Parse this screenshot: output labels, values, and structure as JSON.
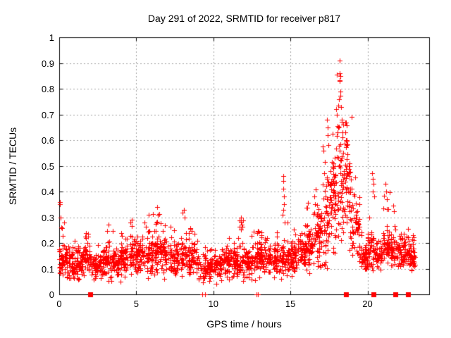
{
  "title": "Day 291 of 2022, SRMTID for receiver p817",
  "chart_data": {
    "type": "scatter",
    "title": "Day 291 of 2022, SRMTID for receiver p817",
    "xlabel": "GPS time / hours",
    "ylabel": "SRMTID / TECUs",
    "xlim": [
      0,
      24
    ],
    "ylim": [
      0,
      1
    ],
    "xticks": [
      0,
      5,
      10,
      15,
      20
    ],
    "xtick_labels": [
      "0",
      "5",
      "10",
      "15",
      "20"
    ],
    "yticks": [
      0,
      0.1,
      0.2,
      0.3,
      0.4,
      0.5,
      0.6,
      0.7,
      0.8,
      0.9,
      1
    ],
    "ytick_labels": [
      "0",
      "0.1",
      "0.2",
      "0.3",
      "0.4",
      "0.5",
      "0.6",
      "0.7",
      "0.8",
      "0.9",
      "1"
    ],
    "grid": true,
    "legend": "none",
    "marker": {
      "shape": "plus",
      "color": "#ff0000",
      "size": 7
    },
    "grid_color": "#a0a0a0",
    "border_color": "#000000",
    "prng_seed": 291,
    "cloud_segments": [
      [
        0.0,
        0.5,
        0.04,
        0.28,
        0.13,
        55
      ],
      [
        0.5,
        1.0,
        0.04,
        0.22,
        0.12,
        50
      ],
      [
        1.0,
        1.5,
        0.04,
        0.2,
        0.11,
        45
      ],
      [
        1.5,
        2.0,
        0.05,
        0.25,
        0.13,
        50
      ],
      [
        2.0,
        2.5,
        0.04,
        0.18,
        0.1,
        40
      ],
      [
        2.5,
        3.0,
        0.05,
        0.22,
        0.12,
        45
      ],
      [
        3.0,
        3.5,
        0.05,
        0.27,
        0.13,
        50
      ],
      [
        3.5,
        4.0,
        0.04,
        0.2,
        0.12,
        45
      ],
      [
        4.0,
        4.5,
        0.06,
        0.24,
        0.14,
        50
      ],
      [
        4.5,
        5.0,
        0.06,
        0.29,
        0.15,
        50
      ],
      [
        5.0,
        5.5,
        0.07,
        0.25,
        0.15,
        50
      ],
      [
        5.5,
        6.0,
        0.06,
        0.31,
        0.15,
        50
      ],
      [
        6.0,
        6.5,
        0.06,
        0.34,
        0.16,
        55
      ],
      [
        6.5,
        7.0,
        0.06,
        0.3,
        0.15,
        50
      ],
      [
        7.0,
        7.5,
        0.05,
        0.28,
        0.13,
        45
      ],
      [
        7.5,
        8.0,
        0.05,
        0.25,
        0.13,
        45
      ],
      [
        8.0,
        8.5,
        0.06,
        0.33,
        0.14,
        50
      ],
      [
        8.5,
        9.0,
        0.05,
        0.25,
        0.13,
        45
      ],
      [
        9.0,
        9.5,
        0.04,
        0.2,
        0.1,
        35
      ],
      [
        9.5,
        10.0,
        0.04,
        0.18,
        0.1,
        40
      ],
      [
        10.0,
        10.5,
        0.04,
        0.18,
        0.1,
        40
      ],
      [
        10.5,
        11.0,
        0.05,
        0.2,
        0.12,
        45
      ],
      [
        11.0,
        11.5,
        0.05,
        0.22,
        0.12,
        45
      ],
      [
        11.5,
        12.0,
        0.05,
        0.3,
        0.13,
        50
      ],
      [
        12.0,
        12.5,
        0.05,
        0.22,
        0.12,
        45
      ],
      [
        12.5,
        13.0,
        0.05,
        0.25,
        0.13,
        45
      ],
      [
        13.0,
        13.5,
        0.06,
        0.26,
        0.14,
        50
      ],
      [
        13.5,
        14.0,
        0.05,
        0.22,
        0.12,
        45
      ],
      [
        14.0,
        14.5,
        0.06,
        0.25,
        0.13,
        45
      ],
      [
        14.5,
        15.0,
        0.06,
        0.3,
        0.14,
        45
      ],
      [
        15.0,
        15.5,
        0.07,
        0.27,
        0.15,
        50
      ],
      [
        15.5,
        16.0,
        0.08,
        0.3,
        0.16,
        50
      ],
      [
        16.0,
        16.5,
        0.08,
        0.38,
        0.18,
        55
      ],
      [
        16.5,
        17.0,
        0.08,
        0.45,
        0.22,
        55
      ],
      [
        17.0,
        17.5,
        0.1,
        0.6,
        0.28,
        55
      ],
      [
        17.5,
        18.0,
        0.1,
        0.72,
        0.35,
        60
      ],
      [
        18.0,
        18.5,
        0.12,
        0.88,
        0.45,
        60
      ],
      [
        18.5,
        19.0,
        0.12,
        0.7,
        0.38,
        55
      ],
      [
        19.0,
        19.5,
        0.1,
        0.5,
        0.24,
        50
      ],
      [
        19.5,
        20.0,
        0.08,
        0.25,
        0.14,
        45
      ],
      [
        20.0,
        20.5,
        0.08,
        0.45,
        0.17,
        45
      ],
      [
        20.5,
        21.0,
        0.08,
        0.3,
        0.15,
        45
      ],
      [
        21.0,
        21.5,
        0.1,
        0.4,
        0.18,
        50
      ],
      [
        21.5,
        22.0,
        0.08,
        0.35,
        0.17,
        50
      ],
      [
        22.0,
        22.5,
        0.08,
        0.3,
        0.16,
        50
      ],
      [
        22.5,
        23.0,
        0.08,
        0.3,
        0.15,
        55
      ],
      [
        23.0,
        23.1,
        0.1,
        0.2,
        0.14,
        8
      ]
    ],
    "feature_points": [
      [
        0.05,
        0.35
      ],
      [
        0.06,
        0.36
      ],
      [
        0.08,
        0.3
      ],
      [
        0.12,
        0.26
      ],
      [
        0.3,
        0.28
      ],
      [
        3.2,
        0.27
      ],
      [
        4.7,
        0.29
      ],
      [
        5.8,
        0.31
      ],
      [
        6.35,
        0.34
      ],
      [
        6.4,
        0.31
      ],
      [
        8.1,
        0.33
      ],
      [
        8.15,
        0.3
      ],
      [
        11.8,
        0.3
      ],
      [
        11.82,
        0.27
      ],
      [
        14.52,
        0.46
      ],
      [
        14.55,
        0.44
      ],
      [
        14.55,
        0.41
      ],
      [
        14.57,
        0.38
      ],
      [
        14.6,
        0.35
      ],
      [
        14.55,
        0.33
      ],
      [
        14.5,
        0.31
      ],
      [
        16.55,
        0.38
      ],
      [
        16.6,
        0.35
      ],
      [
        17.38,
        0.68
      ],
      [
        17.42,
        0.65
      ],
      [
        17.4,
        0.62
      ],
      [
        17.45,
        0.58
      ],
      [
        17.95,
        0.72
      ],
      [
        18.0,
        0.7
      ],
      [
        18.1,
        0.65
      ],
      [
        18.18,
        0.91
      ],
      [
        18.2,
        0.86
      ],
      [
        18.22,
        0.85
      ],
      [
        18.2,
        0.83
      ],
      [
        18.25,
        0.79
      ],
      [
        18.15,
        0.76
      ],
      [
        18.3,
        0.73
      ],
      [
        18.35,
        0.68
      ],
      [
        18.4,
        0.66
      ],
      [
        18.55,
        0.63
      ],
      [
        18.6,
        0.6
      ],
      [
        18.65,
        0.58
      ],
      [
        20.3,
        0.47
      ],
      [
        20.35,
        0.45
      ],
      [
        20.4,
        0.43
      ],
      [
        20.32,
        0.4
      ],
      [
        20.45,
        0.38
      ],
      [
        21.15,
        0.43
      ],
      [
        21.2,
        0.4
      ],
      [
        21.25,
        0.37
      ]
    ],
    "zero_markers": {
      "squares_x": [
        2.0,
        18.6,
        20.4,
        21.8,
        22.65
      ],
      "plus_x": [
        9.3,
        9.45,
        12.78,
        12.88
      ]
    }
  }
}
